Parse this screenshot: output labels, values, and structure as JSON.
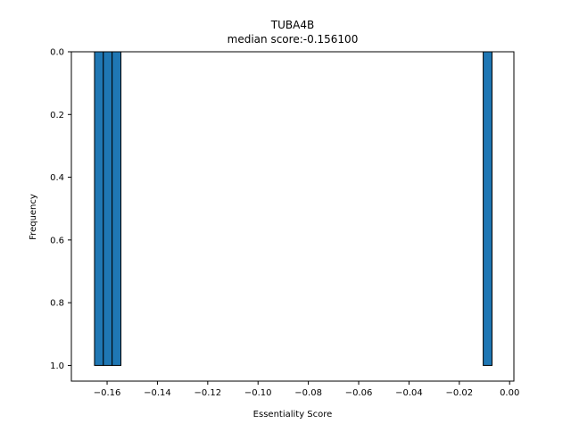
{
  "chart_data": {
    "type": "bar",
    "title": "TUBA4B",
    "subtitle": "median score:-0.156100",
    "xlabel": "Essentiality Score",
    "ylabel": "Frequency",
    "xlim": [
      -0.1742,
      0.0017
    ],
    "ylim": [
      0,
      1.05
    ],
    "y_inverted": true,
    "grid": false,
    "bar_color": "#1f77b4",
    "edge_color": "#000000",
    "bins": [
      {
        "x0": -0.165,
        "x1": -0.1615,
        "value": 1
      },
      {
        "x0": -0.1615,
        "x1": -0.158,
        "value": 1
      },
      {
        "x0": -0.158,
        "x1": -0.1545,
        "value": 1
      },
      {
        "x0": -0.0105,
        "x1": -0.007,
        "value": 1
      }
    ],
    "xticks": [
      {
        "value": -0.16,
        "label": "−0.16"
      },
      {
        "value": -0.14,
        "label": "−0.14"
      },
      {
        "value": -0.12,
        "label": "−0.12"
      },
      {
        "value": -0.1,
        "label": "−0.10"
      },
      {
        "value": -0.08,
        "label": "−0.08"
      },
      {
        "value": -0.06,
        "label": "−0.06"
      },
      {
        "value": -0.04,
        "label": "−0.04"
      },
      {
        "value": -0.02,
        "label": "−0.02"
      },
      {
        "value": 0.0,
        "label": "0.00"
      }
    ],
    "yticks": [
      {
        "value": 0.0,
        "label": "0.0"
      },
      {
        "value": 0.2,
        "label": "0.2"
      },
      {
        "value": 0.4,
        "label": "0.4"
      },
      {
        "value": 0.6,
        "label": "0.6"
      },
      {
        "value": 0.8,
        "label": "0.8"
      },
      {
        "value": 1.0,
        "label": "1.0"
      }
    ]
  }
}
